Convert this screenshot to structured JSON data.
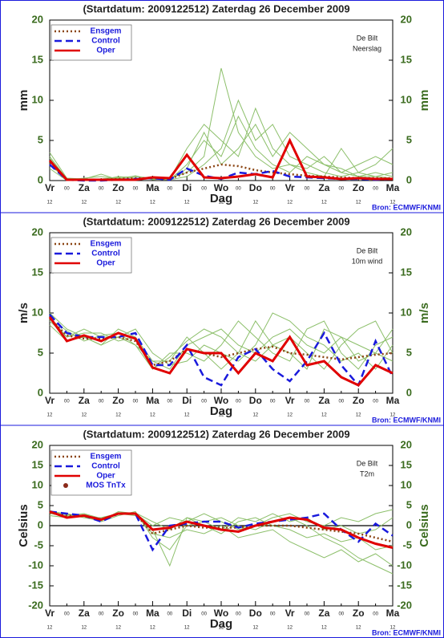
{
  "chart_data": [
    {
      "type": "line",
      "title": "(Startdatum: 2009122512)   Zaterdag 26 December 2009",
      "ylabel": "mm",
      "xlabel": "Dag",
      "annotations": [
        "De Bilt",
        "Neerslag"
      ],
      "source": "Bron: ECMWF/KNMI",
      "x": [
        0,
        12,
        24,
        36,
        48,
        60,
        72,
        84,
        96,
        108,
        120,
        132,
        144,
        156,
        168,
        180,
        192,
        204,
        216,
        228,
        240
      ],
      "xlim": [
        0,
        240
      ],
      "xticks": [
        {
          "value": 0,
          "label": "Vr"
        },
        {
          "value": 24,
          "label": "Za"
        },
        {
          "value": 48,
          "label": "Zo"
        },
        {
          "value": 72,
          "label": "Ma"
        },
        {
          "value": 96,
          "label": "Di"
        },
        {
          "value": 120,
          "label": "Wo"
        },
        {
          "value": 144,
          "label": "Do"
        },
        {
          "value": 168,
          "label": "Vr"
        },
        {
          "value": 192,
          "label": "Za"
        },
        {
          "value": 216,
          "label": "Zo"
        },
        {
          "value": 240,
          "label": "Ma"
        }
      ],
      "xminor": [
        {
          "value": 12,
          "label": "00"
        },
        {
          "value": 36,
          "label": "00"
        },
        {
          "value": 60,
          "label": "00"
        },
        {
          "value": 84,
          "label": "00"
        },
        {
          "value": 108,
          "label": "00"
        },
        {
          "value": 132,
          "label": "00"
        },
        {
          "value": 156,
          "label": "00"
        },
        {
          "value": 180,
          "label": "00"
        },
        {
          "value": 204,
          "label": "00"
        },
        {
          "value": 228,
          "label": "00"
        }
      ],
      "xtick_sublabel": "12",
      "ylim": [
        0,
        20
      ],
      "yticks": [
        0,
        5,
        10,
        15,
        20
      ],
      "y2lim": [
        0,
        20
      ],
      "y2ticks": [
        0,
        5,
        10,
        15,
        20
      ],
      "zero_line": false,
      "ensemble": {
        "color": "#8cbf6a",
        "members": [
          [
            3,
            0.2,
            0,
            0.1,
            0.5,
            0.3,
            0.2,
            0.1,
            2,
            5,
            3,
            8,
            4,
            2,
            1,
            3,
            2,
            1,
            0.5,
            0.5,
            1
          ],
          [
            2,
            0.1,
            0.3,
            0.5,
            0.2,
            0.6,
            0.1,
            0.3,
            1,
            3,
            14,
            6,
            3,
            1.5,
            2,
            1,
            0.5,
            4,
            1,
            0.5,
            0.3
          ],
          [
            1.5,
            0,
            0.1,
            0,
            0.3,
            0.1,
            0.5,
            0.2,
            4,
            7,
            5,
            3,
            9,
            4,
            2,
            1.5,
            3,
            1,
            2,
            3,
            2
          ],
          [
            3.5,
            0.3,
            0.2,
            0.8,
            0.1,
            0.2,
            0.2,
            0.1,
            0.5,
            2,
            4,
            10,
            5,
            7,
            3,
            2,
            1,
            0.5,
            1,
            2,
            4
          ],
          [
            2.8,
            0.1,
            0,
            0.2,
            0.4,
            0.5,
            0.3,
            0.1,
            1.5,
            6,
            2,
            4,
            7,
            3,
            6,
            4,
            2,
            1.5,
            0.5,
            1,
            0.5
          ]
        ]
      },
      "series": [
        {
          "name": "Ensgem",
          "color": "#8b4513",
          "style": "dotted",
          "values": [
            2.2,
            0.1,
            0.1,
            0.1,
            0.2,
            0.3,
            0.3,
            0.2,
            1.0,
            1.5,
            2.0,
            1.8,
            1.3,
            1.0,
            0.8,
            0.6,
            0.5,
            0.4,
            0.3,
            0.3,
            0.3
          ]
        },
        {
          "name": "Control",
          "color": "#1a1adc",
          "style": "dashed",
          "values": [
            2.0,
            0.1,
            0,
            0,
            0.1,
            0.2,
            0.3,
            0.1,
            1.5,
            0.6,
            0.2,
            1.0,
            0.8,
            1.2,
            0.5,
            0.4,
            0.3,
            0.2,
            0.2,
            0.1,
            0.2
          ]
        },
        {
          "name": "Oper",
          "color": "#e00000",
          "style": "solid",
          "values": [
            2.5,
            0.1,
            0.1,
            0.1,
            0.1,
            0.1,
            0.4,
            0.3,
            3.2,
            0.4,
            0.3,
            0.5,
            0.8,
            0.4,
            5.0,
            0.5,
            0.4,
            0.2,
            0.3,
            0.2,
            0.2
          ]
        }
      ]
    },
    {
      "type": "line",
      "title": "(Startdatum: 2009122512)   Zaterdag 26 December 2009",
      "ylabel": "m/s",
      "xlabel": "Dag",
      "annotations": [
        "De Bilt",
        "10m wind"
      ],
      "source": "Bron: ECMWF/KNMI",
      "x": [
        0,
        12,
        24,
        36,
        48,
        60,
        72,
        84,
        96,
        108,
        120,
        132,
        144,
        156,
        168,
        180,
        192,
        204,
        216,
        228,
        240
      ],
      "xlim": [
        0,
        240
      ],
      "xticks": [
        {
          "value": 0,
          "label": "Vr"
        },
        {
          "value": 24,
          "label": "Za"
        },
        {
          "value": 48,
          "label": "Zo"
        },
        {
          "value": 72,
          "label": "Ma"
        },
        {
          "value": 96,
          "label": "Di"
        },
        {
          "value": 120,
          "label": "Wo"
        },
        {
          "value": 144,
          "label": "Do"
        },
        {
          "value": 168,
          "label": "Vr"
        },
        {
          "value": 192,
          "label": "Za"
        },
        {
          "value": 216,
          "label": "Zo"
        },
        {
          "value": 240,
          "label": "Ma"
        }
      ],
      "xminor": [
        {
          "value": 12,
          "label": "00"
        },
        {
          "value": 36,
          "label": "00"
        },
        {
          "value": 60,
          "label": "00"
        },
        {
          "value": 84,
          "label": "00"
        },
        {
          "value": 108,
          "label": "00"
        },
        {
          "value": 132,
          "label": "00"
        },
        {
          "value": 156,
          "label": "00"
        },
        {
          "value": 180,
          "label": "00"
        },
        {
          "value": 204,
          "label": "00"
        },
        {
          "value": 228,
          "label": "00"
        }
      ],
      "xtick_sublabel": "12",
      "ylim": [
        0,
        20
      ],
      "yticks": [
        0,
        5,
        10,
        15,
        20
      ],
      "y2lim": [
        0,
        20
      ],
      "y2ticks": [
        0,
        5,
        10,
        15,
        20
      ],
      "zero_line": false,
      "ensemble": {
        "color": "#8cbf6a",
        "members": [
          [
            9,
            7,
            8,
            7,
            7,
            6,
            4,
            3,
            6,
            7,
            8,
            6,
            5,
            7,
            8,
            6,
            5,
            7,
            6,
            5,
            4
          ],
          [
            10,
            8,
            7,
            6,
            8,
            7,
            3,
            5,
            5,
            4,
            6,
            9,
            7,
            5,
            4,
            8,
            9,
            5,
            3,
            6,
            7
          ],
          [
            9.5,
            7,
            7.5,
            7.5,
            6.5,
            7,
            4,
            4,
            7,
            5,
            3,
            5,
            9,
            6,
            7,
            5,
            3,
            6,
            8,
            9,
            5
          ],
          [
            8.5,
            6.5,
            7,
            6,
            7,
            8,
            5,
            3.5,
            4,
            6,
            5,
            4,
            6,
            10,
            9,
            7,
            6,
            4,
            5,
            3,
            6
          ],
          [
            9.2,
            7.8,
            6.5,
            7.2,
            7.5,
            6,
            3,
            4.5,
            6.5,
            8,
            7,
            5,
            4,
            6,
            5,
            3,
            8,
            7,
            4,
            5,
            8
          ]
        ]
      },
      "series": [
        {
          "name": "Ensgem",
          "color": "#8b4513",
          "style": "dotted",
          "values": [
            9.3,
            7.2,
            6.8,
            6.8,
            7.0,
            6.5,
            3.5,
            4.0,
            5.5,
            5.0,
            4.5,
            5.0,
            5.5,
            5.8,
            5.0,
            4.8,
            4.5,
            4.2,
            4.5,
            4.8,
            5.0
          ]
        },
        {
          "name": "Control",
          "color": "#1a1adc",
          "style": "dashed",
          "values": [
            9.8,
            7.5,
            7.0,
            7.0,
            7.0,
            7.5,
            3.5,
            3.5,
            6.0,
            2.0,
            1.0,
            4.5,
            5.5,
            3.0,
            1.5,
            4.0,
            7.5,
            3.5,
            1.0,
            6.5,
            2.0
          ]
        },
        {
          "name": "Oper",
          "color": "#e00000",
          "style": "solid",
          "values": [
            9.5,
            6.5,
            7.2,
            6.5,
            7.5,
            6.8,
            3.2,
            2.5,
            5.5,
            5.0,
            5.0,
            2.5,
            5.0,
            4.0,
            7.0,
            3.5,
            4.0,
            2.0,
            1.0,
            3.5,
            2.5
          ]
        }
      ]
    },
    {
      "type": "line",
      "title": "(Startdatum: 2009122512)   Zaterdag 26 December 2009",
      "ylabel": "Celsius",
      "xlabel": "Dag",
      "annotations": [
        "De Bilt",
        "T2m"
      ],
      "source": "Bron: ECMWF/KNMI",
      "x": [
        0,
        12,
        24,
        36,
        48,
        60,
        72,
        84,
        96,
        108,
        120,
        132,
        144,
        156,
        168,
        180,
        192,
        204,
        216,
        228,
        240
      ],
      "xlim": [
        0,
        240
      ],
      "xticks": [
        {
          "value": 0,
          "label": "Vr"
        },
        {
          "value": 24,
          "label": "Za"
        },
        {
          "value": 48,
          "label": "Zo"
        },
        {
          "value": 72,
          "label": "Ma"
        },
        {
          "value": 96,
          "label": "Di"
        },
        {
          "value": 120,
          "label": "Wo"
        },
        {
          "value": 144,
          "label": "Do"
        },
        {
          "value": 168,
          "label": "Vr"
        },
        {
          "value": 192,
          "label": "Za"
        },
        {
          "value": 216,
          "label": "Zo"
        },
        {
          "value": 240,
          "label": "Ma"
        }
      ],
      "xminor": [
        {
          "value": 12,
          "label": "00"
        },
        {
          "value": 36,
          "label": "00"
        },
        {
          "value": 60,
          "label": "00"
        },
        {
          "value": 84,
          "label": "00"
        },
        {
          "value": 108,
          "label": "00"
        },
        {
          "value": 132,
          "label": "00"
        },
        {
          "value": 156,
          "label": "00"
        },
        {
          "value": 180,
          "label": "00"
        },
        {
          "value": 204,
          "label": "00"
        },
        {
          "value": 228,
          "label": "00"
        }
      ],
      "xtick_sublabel": "12",
      "ylim": [
        -20,
        20
      ],
      "yticks": [
        -20,
        -15,
        -10,
        -5,
        0,
        5,
        10,
        15,
        20
      ],
      "y2lim": [
        -20,
        20
      ],
      "y2ticks": [
        -20,
        -15,
        -10,
        -5,
        0,
        5,
        10,
        15,
        20
      ],
      "zero_line": true,
      "ensemble": {
        "color": "#8cbf6a",
        "members": [
          [
            3,
            2.5,
            3,
            1,
            2.5,
            3.5,
            -3,
            -6,
            0,
            1,
            2,
            0,
            -1,
            1,
            2,
            0,
            -3,
            -5,
            -8,
            -10,
            -12
          ],
          [
            3.5,
            3,
            2,
            2,
            3,
            2.5,
            -1,
            -10,
            2,
            0,
            -2,
            1,
            2,
            0,
            -1,
            -3,
            -2,
            -4,
            -3,
            -6,
            -5
          ],
          [
            2.5,
            2,
            2.5,
            1.5,
            3,
            3,
            0,
            2,
            1,
            3,
            1,
            -1,
            0,
            2,
            3,
            1,
            0,
            2,
            1,
            3,
            4
          ],
          [
            3.2,
            2.8,
            2,
            1.2,
            3.5,
            3,
            -2,
            -3,
            -1,
            -2,
            0,
            -3,
            -2,
            -1,
            -4,
            -6,
            -8,
            -6,
            -9,
            -7,
            -10
          ],
          [
            3.8,
            2.2,
            3,
            1.8,
            2.8,
            3.2,
            1,
            -1,
            2,
            1,
            -1,
            2,
            1,
            3,
            1,
            2,
            -1,
            0,
            -2,
            -1,
            2
          ]
        ]
      },
      "series": [
        {
          "name": "Ensgem",
          "color": "#8b4513",
          "style": "dotted",
          "values": [
            3.2,
            2.5,
            2.5,
            1.5,
            3,
            3,
            -2,
            -1,
            0,
            -0.5,
            -0.5,
            -0.5,
            0,
            0,
            0,
            -0.5,
            -1,
            -1.5,
            -2,
            -3,
            -4
          ]
        },
        {
          "name": "Control",
          "color": "#1a1adc",
          "style": "dashed",
          "values": [
            3.5,
            3,
            2.5,
            1,
            3,
            3,
            -6,
            0,
            0.5,
            1,
            1,
            -0.5,
            0.5,
            1,
            1.5,
            2,
            3,
            -1,
            -4,
            0.5,
            -2.5
          ]
        },
        {
          "name": "Oper",
          "color": "#e00000",
          "style": "solid",
          "values": [
            3.5,
            2,
            2.5,
            1.5,
            3,
            3,
            -1,
            -0.5,
            1,
            0,
            -1,
            -1.5,
            0,
            1,
            2,
            1.5,
            -0.5,
            -1,
            -3,
            -4.5,
            -5.5
          ]
        },
        {
          "name": "MOS TnTx",
          "color": "#8b2a1a",
          "style": "dot",
          "values": [
            null,
            null,
            null,
            null,
            null,
            null,
            null,
            null,
            null,
            null,
            null,
            null,
            null,
            null,
            null,
            null,
            null,
            null,
            null,
            null,
            null
          ]
        }
      ]
    }
  ]
}
